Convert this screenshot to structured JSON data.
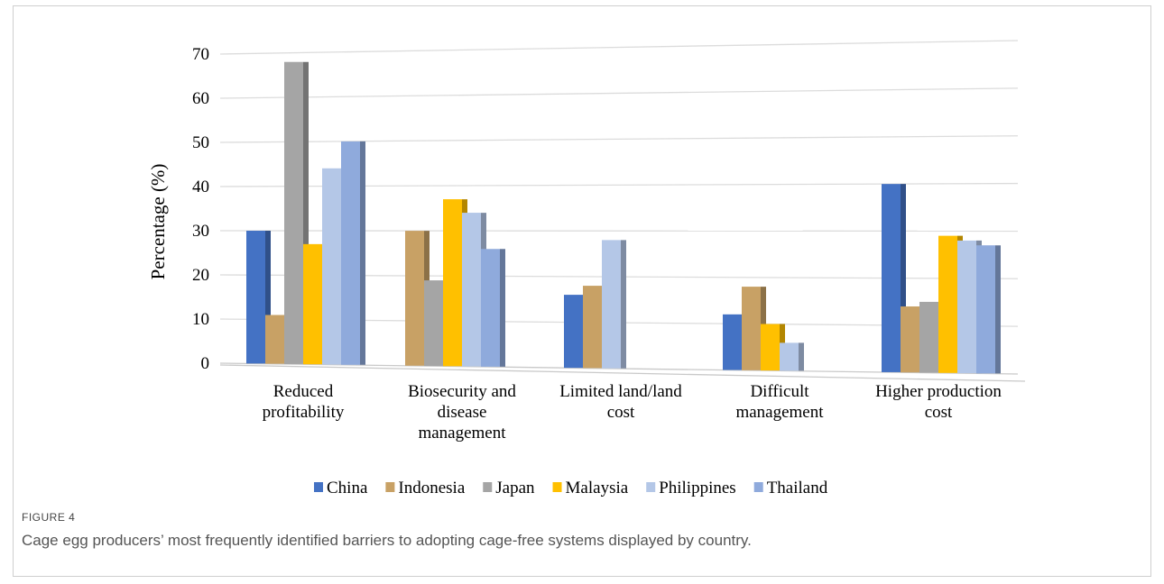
{
  "figure": {
    "label": "FIGURE 4",
    "caption": "Cage egg producers’ most frequently identified barriers to adopting cage-free systems displayed by country."
  },
  "chart_data": {
    "type": "bar",
    "ylabel": "Percentage (%)",
    "xlabel": "",
    "ylim": [
      0,
      70
    ],
    "yticks": [
      0,
      10,
      20,
      30,
      40,
      50,
      60,
      70
    ],
    "grid": true,
    "legend_position": "bottom",
    "categories": [
      [
        "Reduced",
        "profitability"
      ],
      [
        "Biosecurity and",
        "disease",
        "management"
      ],
      [
        "Limited land/land",
        "cost"
      ],
      [
        "Difficult",
        "management"
      ],
      [
        "Higher production",
        "cost"
      ]
    ],
    "series": [
      {
        "name": "China",
        "color": "#4472C4",
        "values": [
          30,
          null,
          16,
          12,
          40
        ]
      },
      {
        "name": "Indonesia",
        "color": "#C8A165",
        "values": [
          11,
          30,
          18,
          18,
          14
        ]
      },
      {
        "name": "Japan",
        "color": "#A5A5A5",
        "values": [
          68,
          19,
          null,
          null,
          15
        ]
      },
      {
        "name": "Malaysia",
        "color": "#FFC000",
        "values": [
          27,
          37,
          null,
          10,
          29
        ]
      },
      {
        "name": "Philippines",
        "color": "#B4C7E7",
        "values": [
          44,
          34,
          28,
          6,
          28
        ]
      },
      {
        "name": "Thailand",
        "color": "#8FAADC",
        "values": [
          50,
          26,
          null,
          null,
          27
        ]
      }
    ]
  }
}
